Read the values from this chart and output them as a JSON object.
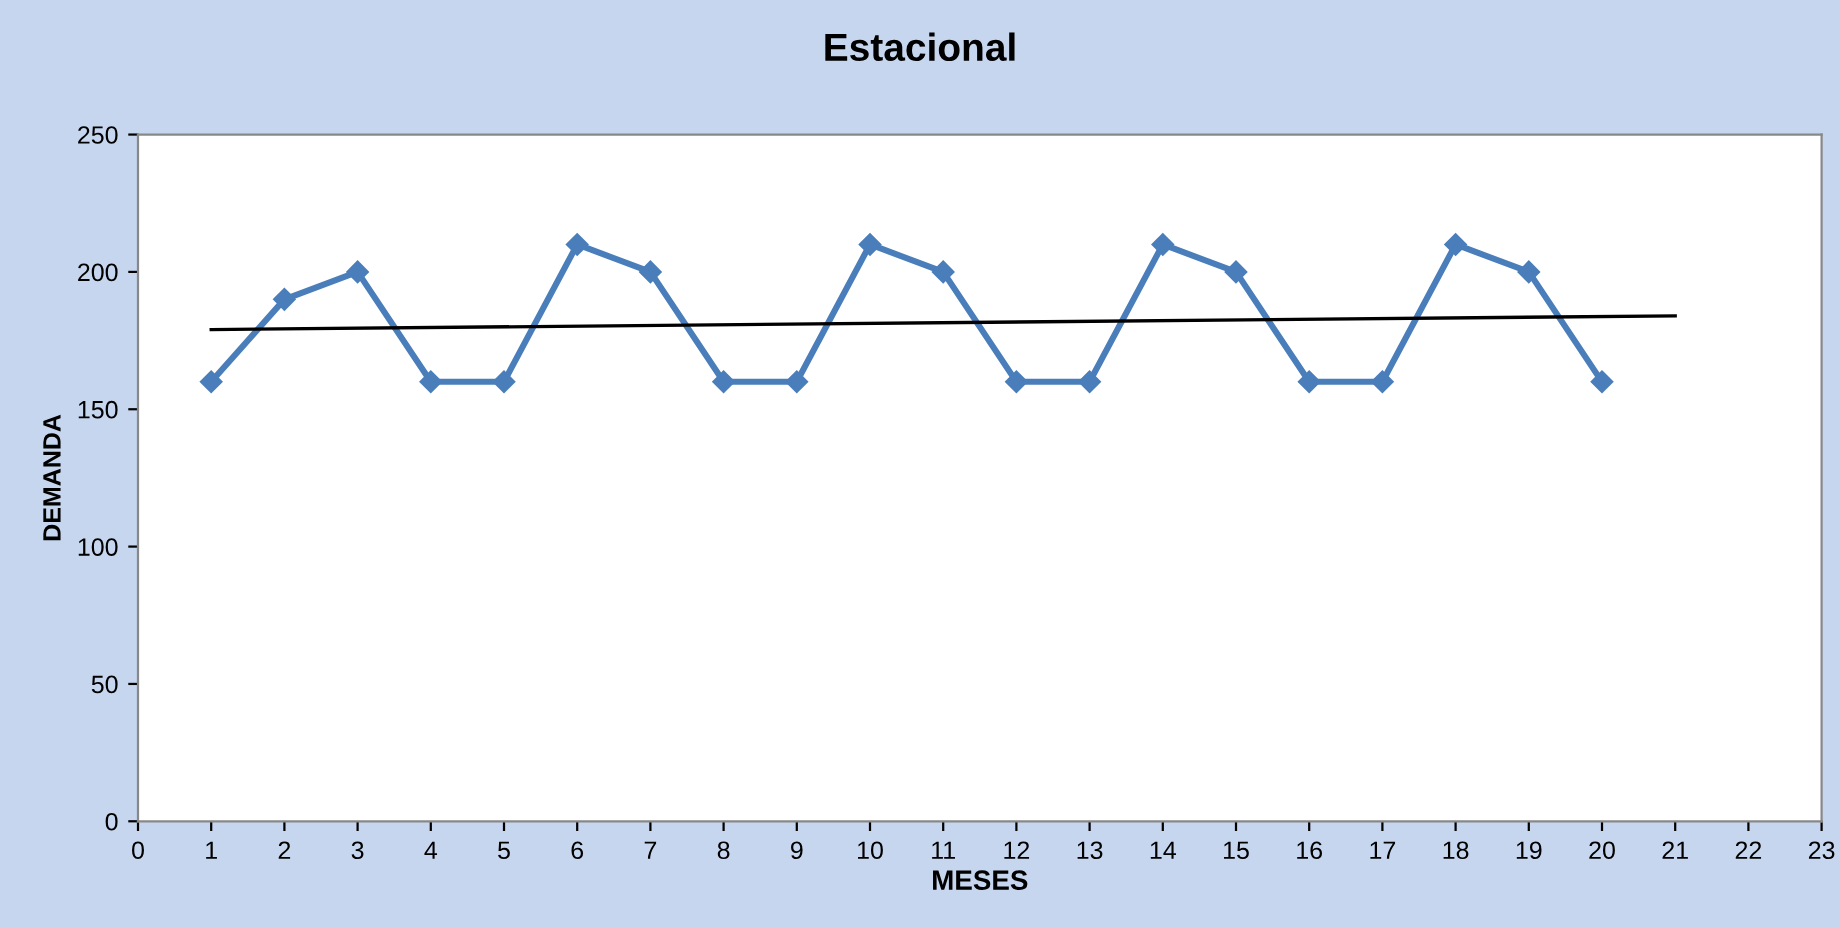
{
  "chart_data": {
    "type": "line",
    "title": "Estacional",
    "xlabel": "MESES",
    "ylabel": "DEMANDA",
    "series": [
      {
        "color": "#4a7ebb",
        "marker": "diamond",
        "line_style": "solid",
        "x": [
          1,
          2,
          3,
          4,
          5,
          6,
          7,
          8,
          9,
          10,
          11,
          12,
          13,
          14,
          15,
          16,
          17,
          18,
          19,
          20
        ],
        "values": [
          160,
          190,
          200,
          160,
          160,
          210,
          200,
          160,
          160,
          210,
          200,
          160,
          160,
          210,
          200,
          160,
          160,
          210,
          200,
          160
        ]
      },
      {
        "color": "#000000",
        "marker": "none",
        "line_style": "solid",
        "x": [
          1,
          21
        ],
        "values": [
          179,
          184
        ]
      }
    ],
    "xlim": [
      0,
      23
    ],
    "xticks": [
      0,
      1,
      2,
      3,
      4,
      5,
      6,
      7,
      8,
      9,
      10,
      11,
      12,
      13,
      14,
      15,
      16,
      17,
      18,
      19,
      20,
      21,
      22,
      23
    ],
    "ylim": [
      0,
      250
    ],
    "yticks": [
      0,
      50,
      100,
      150,
      200,
      250
    ],
    "grid": false,
    "legend": false
  }
}
